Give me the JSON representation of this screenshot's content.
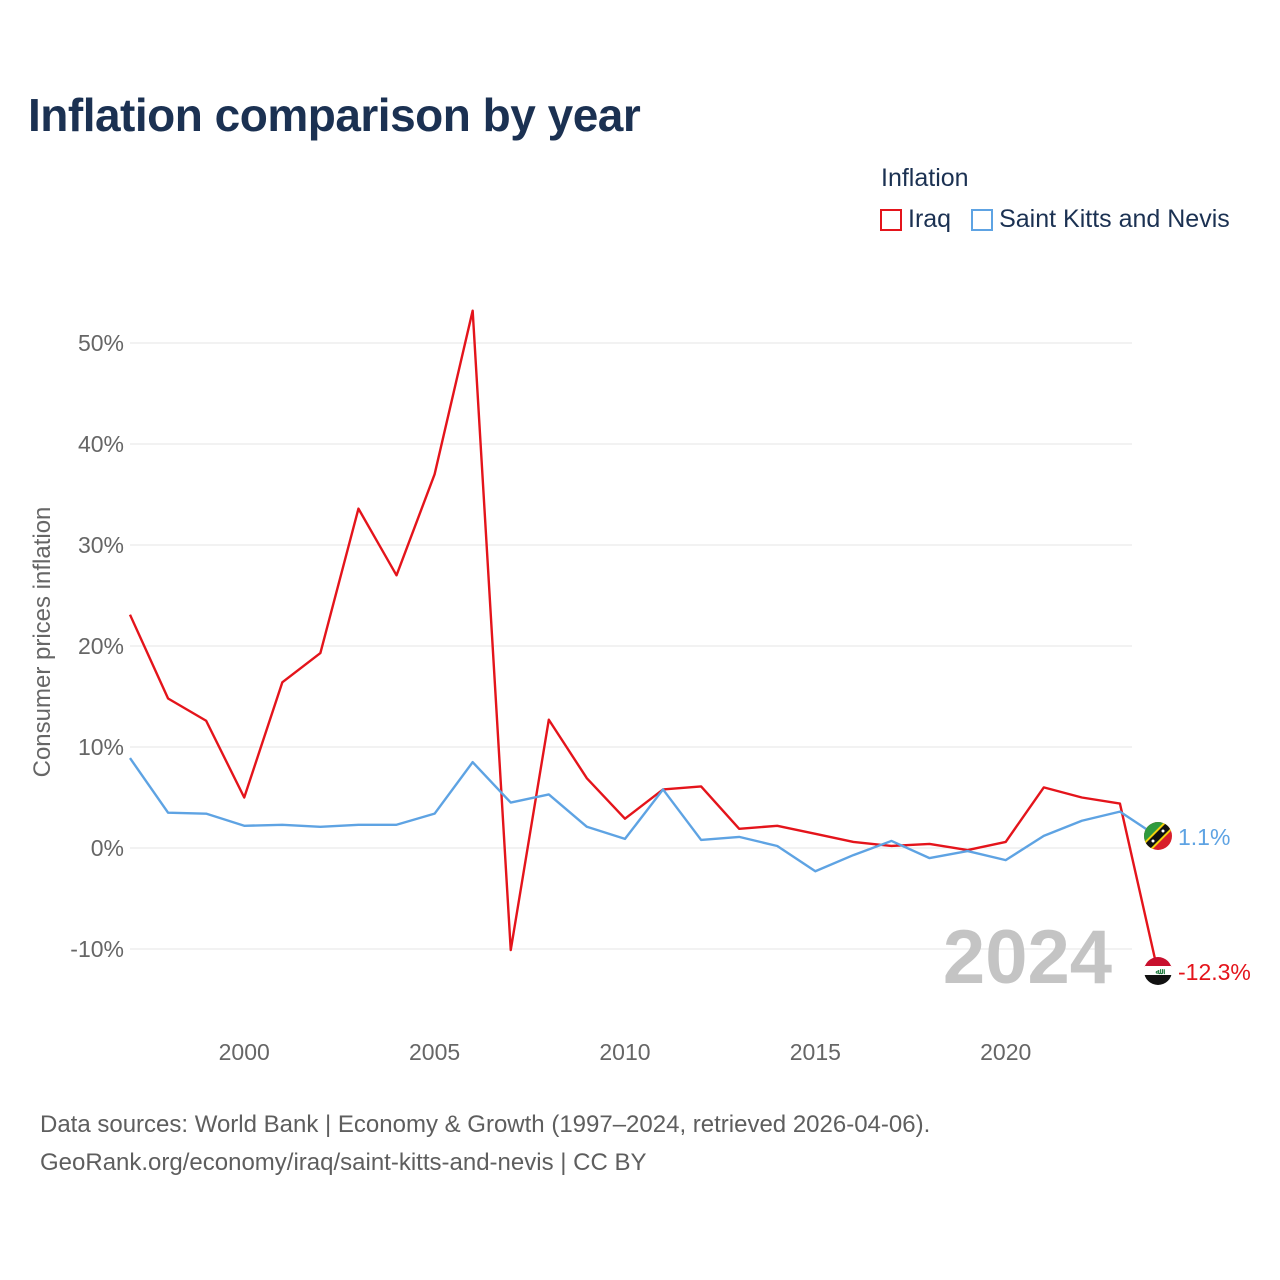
{
  "title": "Inflation comparison by year",
  "legend": {
    "title": "Inflation",
    "items": [
      {
        "label": "Iraq",
        "color": "#e4141b"
      },
      {
        "label": "Saint Kitts and Nevis",
        "color": "#5ea3e3"
      }
    ]
  },
  "year_watermark": "2024",
  "footer": {
    "line1": "Data sources: World Bank | Economy & Growth (1997–2024, retrieved 2026-04-06).",
    "line2": "GeoRank.org/economy/iraq/saint-kitts-and-nevis | CC BY"
  },
  "chart_data": {
    "type": "line",
    "title": "Inflation comparison by year",
    "xlabel": "",
    "ylabel": "Consumer prices inflation",
    "x": [
      1997,
      1998,
      1999,
      2000,
      2001,
      2002,
      2003,
      2004,
      2005,
      2006,
      2007,
      2008,
      2009,
      2010,
      2011,
      2012,
      2013,
      2014,
      2015,
      2016,
      2017,
      2018,
      2019,
      2020,
      2021,
      2022,
      2023,
      2024
    ],
    "xlim": [
      1997,
      2024
    ],
    "ylim": [
      -15,
      55
    ],
    "x_ticks": [
      2000,
      2005,
      2010,
      2015,
      2020
    ],
    "x_tick_labels": [
      "2000",
      "2005",
      "2010",
      "2015",
      "2020"
    ],
    "y_ticks": [
      -10,
      0,
      10,
      20,
      30,
      40,
      50
    ],
    "y_tick_labels": [
      "-10%",
      "0%",
      "10%",
      "20%",
      "30%",
      "40%",
      "50%"
    ],
    "grid": true,
    "legend_position": "top-right",
    "series": [
      {
        "name": "Iraq",
        "color": "#e4141b",
        "values": [
          23.1,
          14.8,
          12.6,
          5.0,
          16.4,
          19.3,
          33.6,
          27.0,
          37.0,
          53.2,
          -10.1,
          12.7,
          6.9,
          2.9,
          5.8,
          6.1,
          1.9,
          2.2,
          1.4,
          0.6,
          0.2,
          0.4,
          -0.2,
          0.6,
          6.0,
          5.0,
          4.4,
          -12.3
        ],
        "end_label": "-12.3%",
        "flag": "iraq-flag"
      },
      {
        "name": "Saint Kitts and Nevis",
        "color": "#5ea3e3",
        "values": [
          8.9,
          3.5,
          3.4,
          2.2,
          2.3,
          2.1,
          2.3,
          2.3,
          3.4,
          8.5,
          4.5,
          5.3,
          2.1,
          0.9,
          5.8,
          0.8,
          1.1,
          0.2,
          -2.3,
          -0.7,
          0.7,
          -1.0,
          -0.3,
          -1.2,
          1.2,
          2.7,
          3.6,
          1.1
        ],
        "end_label": "1.1%",
        "flag": "saint-kitts-flag"
      }
    ]
  }
}
